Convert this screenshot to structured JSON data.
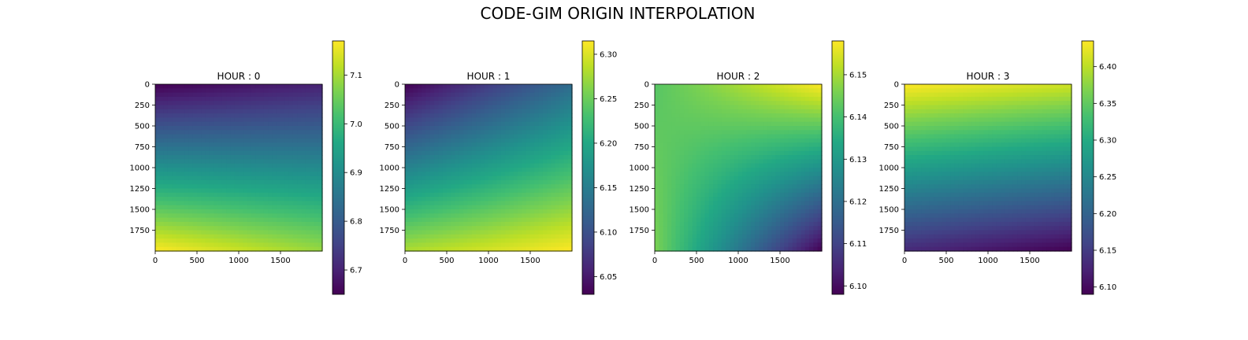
{
  "figure": {
    "title": "CODE-GIM ORIGIN INTERPOLATION"
  },
  "chart_data": [
    {
      "type": "heatmap",
      "title": "HOUR : 0",
      "colormap": "viridis",
      "x_ticks": [
        "0",
        "500",
        "1000",
        "1500"
      ],
      "y_ticks": [
        "0",
        "250",
        "500",
        "750",
        "1000",
        "1250",
        "1500",
        "1750"
      ],
      "xlim": [
        0,
        2000
      ],
      "ylim": [
        2000,
        0
      ],
      "colorbar": {
        "range": [
          6.65,
          7.17
        ],
        "ticks": [
          "6.7",
          "6.8",
          "6.9",
          "7.0",
          "7.1"
        ],
        "tick_values": [
          6.7,
          6.8,
          6.9,
          7.0,
          7.1
        ]
      },
      "corner_values": {
        "top_left": 6.65,
        "top_right": 6.7,
        "bottom_left": 7.17,
        "bottom_right": 7.09
      }
    },
    {
      "type": "heatmap",
      "title": "HOUR : 1",
      "colormap": "viridis",
      "x_ticks": [
        "0",
        "500",
        "1000",
        "1500"
      ],
      "y_ticks": [
        "0",
        "250",
        "500",
        "750",
        "1000",
        "1250",
        "1500",
        "1750"
      ],
      "xlim": [
        0,
        2000
      ],
      "ylim": [
        2000,
        0
      ],
      "colorbar": {
        "range": [
          6.03,
          6.315
        ],
        "ticks": [
          "6.05",
          "6.10",
          "6.15",
          "6.20",
          "6.25",
          "6.30"
        ],
        "tick_values": [
          6.05,
          6.1,
          6.15,
          6.2,
          6.25,
          6.3
        ]
      },
      "corner_values": {
        "top_left": 6.03,
        "top_right": 6.13,
        "bottom_left": 6.28,
        "bottom_right": 6.315
      }
    },
    {
      "type": "heatmap",
      "title": "HOUR : 2",
      "colormap": "viridis",
      "x_ticks": [
        "0",
        "500",
        "1000",
        "1500"
      ],
      "y_ticks": [
        "0",
        "250",
        "500",
        "750",
        "1000",
        "1250",
        "1500",
        "1750"
      ],
      "xlim": [
        0,
        2000
      ],
      "ylim": [
        2000,
        0
      ],
      "colorbar": {
        "range": [
          6.098,
          6.158
        ],
        "ticks": [
          "6.10",
          "6.11",
          "6.12",
          "6.13",
          "6.14",
          "6.15"
        ],
        "tick_values": [
          6.1,
          6.11,
          6.12,
          6.13,
          6.14,
          6.15
        ]
      },
      "corner_values": {
        "top_left": 6.142,
        "top_right": 6.158,
        "bottom_left": 6.146,
        "bottom_right": 6.098
      }
    },
    {
      "type": "heatmap",
      "title": "HOUR : 3",
      "colormap": "viridis",
      "x_ticks": [
        "0",
        "500",
        "1000",
        "1500"
      ],
      "y_ticks": [
        "0",
        "250",
        "500",
        "750",
        "1000",
        "1250",
        "1500",
        "1750"
      ],
      "xlim": [
        0,
        2000
      ],
      "ylim": [
        2000,
        0
      ],
      "colorbar": {
        "range": [
          6.09,
          6.435
        ],
        "ticks": [
          "6.10",
          "6.15",
          "6.20",
          "6.25",
          "6.30",
          "6.35",
          "6.40"
        ],
        "tick_values": [
          6.1,
          6.15,
          6.2,
          6.25,
          6.3,
          6.35,
          6.4
        ]
      },
      "corner_values": {
        "top_left": 6.435,
        "top_right": 6.41,
        "bottom_left": 6.13,
        "bottom_right": 6.09
      }
    }
  ]
}
